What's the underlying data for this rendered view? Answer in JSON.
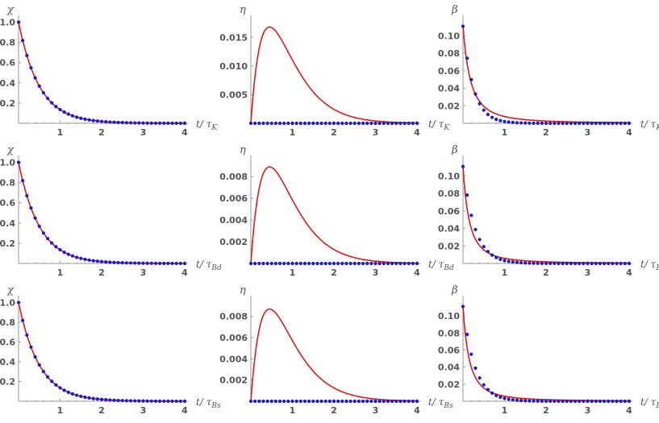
{
  "colors": {
    "curve": "#dd1c1c",
    "dots": "#1a1ad6",
    "axis": "#9a9a9a",
    "text": "#555555"
  },
  "chart_data": [
    {
      "type": "line",
      "row": 0,
      "col": 0,
      "ylabel": "χ",
      "xlabel": "t/ τ",
      "xlabel_sub": "K",
      "xlim": [
        0,
        4
      ],
      "ylim": [
        0,
        1.02
      ],
      "x_ticks": [
        "1",
        "2",
        "3",
        "4"
      ],
      "y_ticks": [
        "0.2",
        "0.4",
        "0.6",
        "0.8",
        "1.0"
      ],
      "y_tick_values": [
        0.2,
        0.4,
        0.6,
        0.8,
        1.0
      ],
      "series": [
        {
          "style": "curve",
          "shape": "exp",
          "amp": 1.0,
          "rate": 2.0
        },
        {
          "style": "dots",
          "shape": "exp",
          "amp": 1.0,
          "rate": 2.0,
          "step": 0.1
        }
      ]
    },
    {
      "type": "line",
      "row": 0,
      "col": 1,
      "ylabel": "η",
      "xlabel": "t/ τ",
      "xlabel_sub": "K",
      "xlim": [
        0,
        4
      ],
      "ylim": [
        0,
        0.018
      ],
      "x_ticks": [
        "1",
        "2",
        "3",
        "4"
      ],
      "y_ticks": [
        "0.005",
        "0.010",
        "0.015"
      ],
      "y_tick_values": [
        0.005,
        0.01,
        0.015
      ],
      "series": [
        {
          "style": "curve",
          "shape": "hump",
          "peak_x": 0.45,
          "peak": 0.0168,
          "rate": 2.2
        },
        {
          "style": "dots",
          "shape": "zero",
          "step": 0.1
        }
      ]
    },
    {
      "type": "line",
      "row": 0,
      "col": 2,
      "ylabel": "β",
      "xlabel": "t/ τ",
      "xlabel_sub": "K",
      "xlim": [
        0,
        4
      ],
      "ylim": [
        0,
        0.118
      ],
      "x_ticks": [
        "1",
        "2",
        "3",
        "4"
      ],
      "y_ticks": [
        "0.02",
        "0.04",
        "0.06",
        "0.08",
        "0.10"
      ],
      "y_tick_values": [
        0.02,
        0.04,
        0.06,
        0.08,
        0.1
      ],
      "series": [
        {
          "style": "curve",
          "shape": "hyper",
          "amp": 0.111,
          "a": 0.36,
          "p": 2.0
        },
        {
          "style": "dots",
          "shape": "exp",
          "amp": 0.111,
          "rate": 4.0,
          "step": 0.1
        }
      ]
    },
    {
      "type": "line",
      "row": 1,
      "col": 0,
      "ylabel": "χ",
      "xlabel": "t/ τ",
      "xlabel_sub": "Bd",
      "xlim": [
        0,
        4
      ],
      "ylim": [
        0,
        1.02
      ],
      "x_ticks": [
        "1",
        "2",
        "3",
        "4"
      ],
      "y_ticks": [
        "0.2",
        "0.4",
        "0.6",
        "0.8",
        "1.0"
      ],
      "y_tick_values": [
        0.2,
        0.4,
        0.6,
        0.8,
        1.0
      ],
      "series": [
        {
          "style": "curve",
          "shape": "exp",
          "amp": 1.0,
          "rate": 2.0
        },
        {
          "style": "dots",
          "shape": "exp",
          "amp": 1.0,
          "rate": 2.0,
          "step": 0.1
        }
      ]
    },
    {
      "type": "line",
      "row": 1,
      "col": 1,
      "ylabel": "η",
      "xlabel": "t/ τ",
      "xlabel_sub": "Bd",
      "xlim": [
        0,
        4
      ],
      "ylim": [
        0,
        0.0095
      ],
      "x_ticks": [
        "1",
        "2",
        "3",
        "4"
      ],
      "y_ticks": [
        "0.002",
        "0.004",
        "0.006",
        "0.008"
      ],
      "y_tick_values": [
        0.002,
        0.004,
        0.006,
        0.008
      ],
      "series": [
        {
          "style": "curve",
          "shape": "hump",
          "peak_x": 0.45,
          "peak": 0.0089,
          "rate": 2.2
        },
        {
          "style": "dots",
          "shape": "zero",
          "step": 0.1
        }
      ]
    },
    {
      "type": "line",
      "row": 1,
      "col": 2,
      "ylabel": "β",
      "xlabel": "t/ τ",
      "xlabel_sub": "Bd",
      "xlim": [
        0,
        4
      ],
      "ylim": [
        0,
        0.118
      ],
      "x_ticks": [
        "1",
        "2",
        "3",
        "4"
      ],
      "y_ticks": [
        "0.02",
        "0.04",
        "0.06",
        "0.08",
        "0.10"
      ],
      "y_tick_values": [
        0.02,
        0.04,
        0.06,
        0.08,
        0.1
      ],
      "series": [
        {
          "style": "curve",
          "shape": "hyper",
          "amp": 0.111,
          "a": 0.3,
          "p": 2.0
        },
        {
          "style": "dots",
          "shape": "exp",
          "amp": 0.111,
          "rate": 3.5,
          "step": 0.1
        }
      ]
    },
    {
      "type": "line",
      "row": 2,
      "col": 0,
      "ylabel": "χ",
      "xlabel": "t/ τ",
      "xlabel_sub": "Bs",
      "xlim": [
        0,
        4
      ],
      "ylim": [
        0,
        1.02
      ],
      "x_ticks": [
        "1",
        "2",
        "3",
        "4"
      ],
      "y_ticks": [
        "0.2",
        "0.4",
        "0.6",
        "0.8",
        "1.0"
      ],
      "y_tick_values": [
        0.2,
        0.4,
        0.6,
        0.8,
        1.0
      ],
      "series": [
        {
          "style": "curve",
          "shape": "exp",
          "amp": 1.0,
          "rate": 2.0
        },
        {
          "style": "dots",
          "shape": "exp",
          "amp": 1.0,
          "rate": 2.0,
          "step": 0.1
        }
      ]
    },
    {
      "type": "line",
      "row": 2,
      "col": 1,
      "ylabel": "η",
      "xlabel": "t/ τ",
      "xlabel_sub": "Bs",
      "xlim": [
        0,
        4
      ],
      "ylim": [
        0,
        0.0095
      ],
      "x_ticks": [
        "1",
        "2",
        "3",
        "4"
      ],
      "y_ticks": [
        "0.002",
        "0.004",
        "0.006",
        "0.008"
      ],
      "y_tick_values": [
        0.002,
        0.004,
        0.006,
        0.008
      ],
      "series": [
        {
          "style": "curve",
          "shape": "hump",
          "peak_x": 0.45,
          "peak": 0.0087,
          "rate": 2.2
        },
        {
          "style": "dots",
          "shape": "zero",
          "step": 0.1
        }
      ]
    },
    {
      "type": "line",
      "row": 2,
      "col": 2,
      "ylabel": "β",
      "xlabel": "t/ τ",
      "xlabel_sub": "Bs",
      "xlim": [
        0,
        4
      ],
      "ylim": [
        0,
        0.118
      ],
      "x_ticks": [
        "1",
        "2",
        "3",
        "4"
      ],
      "y_ticks": [
        "0.02",
        "0.04",
        "0.06",
        "0.08",
        "0.10"
      ],
      "y_tick_values": [
        0.02,
        0.04,
        0.06,
        0.08,
        0.1
      ],
      "series": [
        {
          "style": "curve",
          "shape": "hyper",
          "amp": 0.111,
          "a": 0.3,
          "p": 2.0
        },
        {
          "style": "dots",
          "shape": "exp",
          "amp": 0.111,
          "rate": 3.5,
          "step": 0.1
        }
      ]
    }
  ]
}
